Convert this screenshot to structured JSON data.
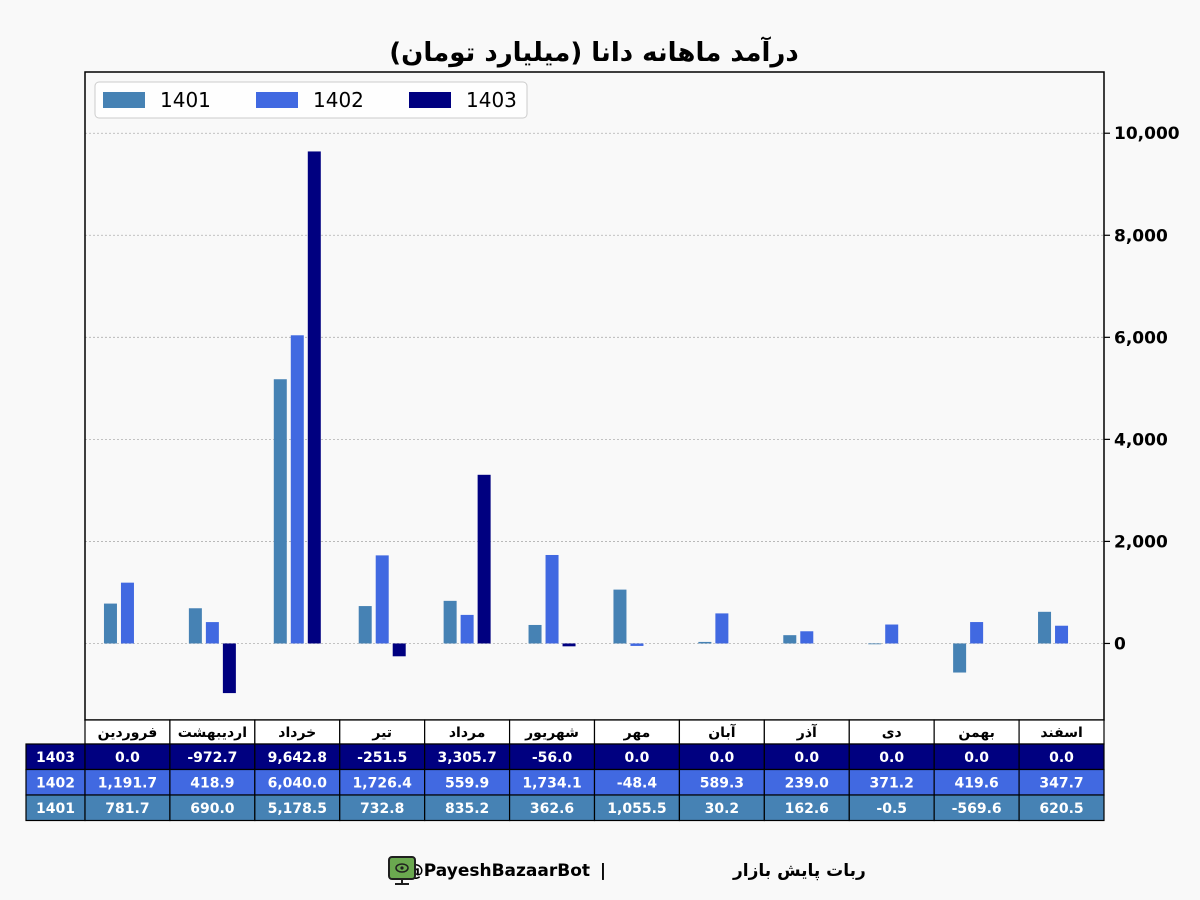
{
  "chart_data": {
    "type": "bar",
    "title": "درآمد ماهانه دانا (میلیارد تومان)",
    "categories": [
      "فروردین",
      "اردیبهشت",
      "خرداد",
      "تیر",
      "مرداد",
      "شهریور",
      "مهر",
      "آبان",
      "آذر",
      "دی",
      "بهمن",
      "اسفند"
    ],
    "series": [
      {
        "name": "1401",
        "color": "#4682b4",
        "values": [
          781.7,
          690.0,
          5178.5,
          732.8,
          835.2,
          362.6,
          1055.5,
          30.2,
          162.6,
          -0.5,
          -569.6,
          620.5
        ],
        "labels": [
          "781.7",
          "690.0",
          "5,178.5",
          "732.8",
          "835.2",
          "362.6",
          "1,055.5",
          "30.2",
          "162.6",
          "-0.5",
          "-569.6",
          "620.5"
        ]
      },
      {
        "name": "1402",
        "color": "#4169e1",
        "values": [
          1191.7,
          418.9,
          6040.0,
          1726.4,
          559.9,
          1734.1,
          -48.4,
          589.3,
          239.0,
          371.2,
          419.6,
          347.7
        ],
        "labels": [
          "1,191.7",
          "418.9",
          "6,040.0",
          "1,726.4",
          "559.9",
          "1,734.1",
          "-48.4",
          "589.3",
          "239.0",
          "371.2",
          "419.6",
          "347.7"
        ]
      },
      {
        "name": "1403",
        "color": "#000080",
        "values": [
          0.0,
          -972.7,
          9642.8,
          -251.5,
          3305.7,
          -56.0,
          0.0,
          0.0,
          0.0,
          0.0,
          0.0,
          0.0
        ],
        "labels": [
          "0.0",
          "-972.7",
          "9,642.8",
          "-251.5",
          "3,305.7",
          "-56.0",
          "0.0",
          "0.0",
          "0.0",
          "0.0",
          "0.0",
          "0.0"
        ]
      }
    ],
    "table_row_order": [
      "1403",
      "1402",
      "1401"
    ],
    "ylim": [
      -1500,
      11200
    ],
    "yticks": [
      0,
      2000,
      4000,
      6000,
      8000,
      10000
    ],
    "ytick_labels": [
      "0",
      "2,000",
      "4,000",
      "6,000",
      "8,000",
      "10,000"
    ],
    "y_axis_side": "right",
    "grid": true,
    "legend_position": "top-left"
  },
  "footer": {
    "text": "ربات پایش بازار",
    "separator": "|",
    "handle": "@PayeshBazaarBot",
    "icon": "monitor-icon"
  }
}
